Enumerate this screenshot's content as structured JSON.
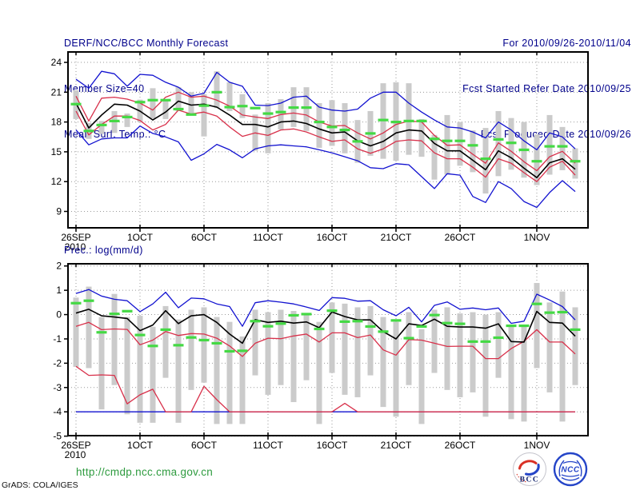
{
  "header": {
    "title": "DERF/NCC/BCC Monthly Forecast",
    "member_size": "Member Size=40",
    "for_range": "For 2010/09/26-2010/11/04",
    "refer_date": "Fcst Started Refer Date 2010/09/25",
    "produced_date": "Fcst Produced Date 2010/09/26"
  },
  "footer": {
    "url": "http://cmdp.ncc.cma.gov.cn",
    "grads_credit": "GrADS: COLA/IGES",
    "bcc_logo_text": "BCC",
    "ncc_logo_text": "NCC"
  },
  "colors": {
    "header_text": "#00008b",
    "axis_text": "#000000",
    "blue_line": "#1212d0",
    "red_line": "#d8304a",
    "green_dash": "#44d944",
    "gray_bar": "#cbcbcb",
    "grid": "#9a9a9a",
    "url_text": "#2e9b3f",
    "logo_red": "#d93025",
    "logo_blue": "#2545c8"
  },
  "chart_data": [
    {
      "type": "line",
      "panel": "mean-surface-temperature",
      "title": "Mean Surf. Temp.: °C",
      "ylabel": "°C",
      "xlabel": "",
      "grid": true,
      "legend": false,
      "n_days": 40,
      "x_tick_labels": [
        "26SEP",
        "1OCT",
        "6OCT",
        "11OCT",
        "16OCT",
        "21OCT",
        "26OCT",
        "1NOV"
      ],
      "x_tick_days": [
        1,
        6,
        11,
        16,
        21,
        26,
        31,
        37
      ],
      "x_year_label": "2010",
      "y_tick_labels": [
        "24",
        "21",
        "18",
        "15",
        "12",
        "9"
      ],
      "y_ticks": [
        24,
        21,
        18,
        15,
        12,
        9
      ],
      "ylim": [
        7.35,
        25.05
      ],
      "series": [
        {
          "name": "member-max",
          "color": "blue",
          "values": [
            22.3,
            21.4,
            23.1,
            22.85,
            21.6,
            22.8,
            22.7,
            22.0,
            21.5,
            20.6,
            20.9,
            23.0,
            22.0,
            21.6,
            19.7,
            19.65,
            19.9,
            20.5,
            20.6,
            19.5,
            19.2,
            19.1,
            19.3,
            20.4,
            21.0,
            21.0,
            19.9,
            19.0,
            18.2,
            17.5,
            17.4,
            17.0,
            16.4,
            18.0,
            17.2,
            16.1,
            15.2,
            16.9,
            16.5,
            15.3
          ]
        },
        {
          "name": "member-min",
          "color": "blue",
          "values": [
            17.2,
            15.7,
            16.3,
            16.4,
            16.4,
            17.6,
            16.85,
            16.5,
            16.0,
            14.15,
            14.8,
            15.75,
            15.2,
            14.4,
            15.3,
            15.6,
            15.7,
            15.6,
            15.5,
            15.2,
            14.9,
            14.5,
            14.1,
            13.4,
            13.3,
            13.8,
            13.7,
            12.5,
            11.3,
            12.8,
            12.65,
            10.5,
            9.9,
            12.0,
            11.3,
            10.0,
            9.4,
            10.9,
            12.1,
            11.0
          ]
        },
        {
          "name": "mean-plus-spread",
          "color": "red",
          "values": [
            20.6,
            18.1,
            20.4,
            20.5,
            20.3,
            19.9,
            19.2,
            20.5,
            21.0,
            20.5,
            20.6,
            20.2,
            19.6,
            18.7,
            18.5,
            18.35,
            18.75,
            18.9,
            18.7,
            18.0,
            17.6,
            17.65,
            16.9,
            16.3,
            16.9,
            17.75,
            18.1,
            18.0,
            16.65,
            15.65,
            15.7,
            14.75,
            13.85,
            15.9,
            15.05,
            14.0,
            13.1,
            14.5,
            15.05,
            13.85
          ]
        },
        {
          "name": "mean-minus-spread",
          "color": "red",
          "values": [
            19.1,
            16.7,
            17.75,
            18.6,
            18.6,
            18.15,
            17.2,
            17.75,
            19.2,
            18.8,
            19.0,
            18.6,
            17.5,
            16.55,
            16.9,
            16.65,
            17.2,
            17.3,
            17.0,
            16.5,
            16.05,
            16.2,
            15.3,
            14.85,
            15.3,
            16.05,
            16.2,
            16.1,
            14.9,
            14.3,
            14.3,
            13.45,
            12.45,
            14.3,
            13.85,
            12.9,
            12.0,
            13.45,
            14.05,
            12.65
          ]
        },
        {
          "name": "ensemble-mean",
          "color": "black",
          "values": [
            19.9,
            17.4,
            18.7,
            19.8,
            19.7,
            19.1,
            18.2,
            19.0,
            20.1,
            19.7,
            19.8,
            19.5,
            18.7,
            17.75,
            17.75,
            17.5,
            18.0,
            18.1,
            17.85,
            17.3,
            16.9,
            17.0,
            16.1,
            15.6,
            16.05,
            16.9,
            17.2,
            17.1,
            15.85,
            15.1,
            15.1,
            14.15,
            13.2,
            15.1,
            14.4,
            13.35,
            12.4,
            13.9,
            14.3,
            13.25
          ]
        }
      ],
      "obs": {
        "name": "daily-value-dash",
        "color": "green",
        "values": [
          19.8,
          17.1,
          17.7,
          18.1,
          18.5,
          20.0,
          20.2,
          20.2,
          19.3,
          18.75,
          19.65,
          21.0,
          19.5,
          19.6,
          19.4,
          18.85,
          19.0,
          19.45,
          19.45,
          18.0,
          17.5,
          17.2,
          16.05,
          16.85,
          18.2,
          18.0,
          18.1,
          18.1,
          16.3,
          16.1,
          16.1,
          15.65,
          14.3,
          16.25,
          15.9,
          15.2,
          14.05,
          15.55,
          15.55,
          14.05
        ]
      },
      "bars": {
        "name": "member-spread-bar",
        "color": "gray",
        "top": [
          21.2,
          17.9,
          18.1,
          19.1,
          18.85,
          20.25,
          21.4,
          20.25,
          21.5,
          21.0,
          20.8,
          23.1,
          22.0,
          20.8,
          18.75,
          19.9,
          20.3,
          21.5,
          21.5,
          19.9,
          20.2,
          19.9,
          18.2,
          19.1,
          21.9,
          22.0,
          21.9,
          18.3,
          16.7,
          18.7,
          18.0,
          17.15,
          17.4,
          19.1,
          18.4,
          18.0,
          16.75,
          18.7,
          17.5,
          15.35
        ],
        "bottom": [
          18.3,
          16.3,
          16.8,
          16.9,
          17.5,
          18.0,
          18.35,
          18.3,
          19.1,
          18.85,
          16.55,
          19.4,
          19.1,
          18.4,
          15.1,
          14.85,
          17.25,
          17.5,
          17.1,
          15.4,
          15.6,
          14.85,
          13.9,
          14.6,
          14.3,
          14.1,
          14.7,
          14.5,
          12.2,
          12.7,
          13.6,
          12.95,
          10.8,
          12.55,
          13.2,
          12.4,
          11.65,
          12.7,
          13.15,
          12.3
        ]
      }
    },
    {
      "type": "line",
      "panel": "precipitation",
      "title": "Prec.: log(mm/d)",
      "ylabel": "log(mm/d)",
      "xlabel": "",
      "grid": true,
      "legend": false,
      "n_days": 40,
      "x_tick_labels": [
        "26SEP",
        "1OCT",
        "6OCT",
        "11OCT",
        "16OCT",
        "21OCT",
        "26OCT",
        "1NOV"
      ],
      "x_tick_days": [
        1,
        6,
        11,
        16,
        21,
        26,
        31,
        37
      ],
      "x_year_label": "2010",
      "y_tick_labels": [
        "2",
        "1",
        "0",
        "-1",
        "-2",
        "-3",
        "-4",
        "-5"
      ],
      "y_ticks": [
        2,
        1,
        0,
        -1,
        -2,
        -3,
        -4,
        -5
      ],
      "ylim": [
        -4.98,
        2.09
      ],
      "series": [
        {
          "name": "member-max",
          "color": "blue",
          "values": [
            0.87,
            1.03,
            0.76,
            0.63,
            0.57,
            0.12,
            0.44,
            0.92,
            0.28,
            0.68,
            0.65,
            0.44,
            0.33,
            -0.48,
            0.49,
            0.57,
            0.51,
            0.44,
            0.31,
            0.17,
            0.7,
            0.67,
            0.55,
            0.57,
            0.2,
            -0.05,
            0.3,
            -0.3,
            0.38,
            0.52,
            0.22,
            0.27,
            0.2,
            0.27,
            -0.36,
            -0.27,
            0.84,
            0.6,
            0.33,
            -0.22
          ]
        },
        {
          "name": "member-min",
          "color": "blue",
          "values": [
            -4,
            -4,
            -4,
            -4,
            -4,
            -4,
            -4,
            -4,
            -4,
            -4,
            -4,
            -4,
            -4,
            -4,
            -4,
            -4,
            -4,
            -4,
            -4,
            -4,
            -4,
            -4,
            -4,
            -4,
            -4,
            -4,
            -4,
            -4,
            -4,
            -4,
            -4,
            -4,
            -4,
            -4,
            -4,
            -4,
            -4,
            -4,
            -4,
            -4
          ]
        },
        {
          "name": "upper-red",
          "color": "red",
          "values": [
            -0.48,
            -0.32,
            -0.62,
            -0.59,
            -0.61,
            -1.24,
            -1.05,
            -0.7,
            -0.86,
            -0.78,
            -0.8,
            -0.97,
            -1.29,
            -1.72,
            -1.18,
            -0.97,
            -0.99,
            -0.88,
            -0.8,
            -1.13,
            -0.75,
            -0.75,
            -0.95,
            -0.84,
            -1.45,
            -1.67,
            -1.03,
            -1.05,
            -1.18,
            -1.31,
            -1.3,
            -1.3,
            -1.81,
            -1.81,
            -1.4,
            -1.1,
            -0.62,
            -1.13,
            -1.13,
            -1.62
          ]
        },
        {
          "name": "lower-red",
          "color": "red",
          "values": [
            -2.13,
            -2.5,
            -2.48,
            -2.5,
            -3.67,
            -3.3,
            -3.07,
            -4.0,
            -4.0,
            -4.0,
            -2.95,
            -3.5,
            -4.0,
            -4.0,
            -4.0,
            -4.0,
            -4.0,
            -4.0,
            -4.0,
            -4.0,
            -4.0,
            -3.65,
            -4.0,
            -4.0,
            -4.0,
            -4.0,
            -4.0,
            -4.0,
            -4.0,
            -4.0,
            -4.0,
            -4.0,
            -4.0,
            -4.0,
            -4.0,
            -4.0,
            -4.0,
            -4.0,
            -4.0,
            -4.0
          ]
        },
        {
          "name": "ensemble-mean",
          "color": "black",
          "values": [
            0.06,
            0.22,
            -0.05,
            -0.1,
            -0.16,
            -0.66,
            -0.43,
            0.16,
            -0.37,
            -0.05,
            0.0,
            -0.32,
            -0.8,
            -1.18,
            -0.21,
            -0.32,
            -0.27,
            -0.35,
            -0.3,
            -0.54,
            0.11,
            -0.08,
            -0.22,
            -0.22,
            -0.7,
            -1.0,
            -0.38,
            -0.45,
            -0.19,
            -0.48,
            -0.51,
            -0.51,
            -0.56,
            -0.38,
            -1.11,
            -1.13,
            0.13,
            -0.32,
            -0.35,
            -0.89
          ]
        }
      ],
      "obs": {
        "name": "daily-value-dash",
        "color": "green",
        "values": [
          0.47,
          0.57,
          -0.73,
          0.03,
          0.14,
          -0.84,
          -1.29,
          -0.62,
          -1.26,
          -0.94,
          -1.05,
          -1.18,
          -1.51,
          -1.49,
          -0.27,
          -0.48,
          -0.37,
          -0.03,
          0.02,
          -0.59,
          0.16,
          -0.29,
          -0.27,
          -0.49,
          -0.7,
          -0.24,
          -0.97,
          -0.49,
          -0.02,
          -0.35,
          -0.38,
          -1.11,
          -1.11,
          -0.95,
          -0.46,
          -0.46,
          0.44,
          0.08,
          0.1,
          -0.62
        ]
      },
      "bars": {
        "name": "member-spread-bar",
        "color": "gray",
        "top": [
          0.7,
          1.15,
          -0.1,
          0.85,
          -0.1,
          -0.05,
          -0.5,
          0.35,
          -0.2,
          0.2,
          0.3,
          -0.1,
          -0.3,
          -0.9,
          0.2,
          0.1,
          0.2,
          0.15,
          0.05,
          -0.3,
          0.5,
          0.45,
          0.3,
          0.35,
          -0.1,
          -0.3,
          0.1,
          -0.6,
          0.2,
          0.3,
          0.05,
          0.1,
          0.0,
          0.1,
          -0.5,
          -0.5,
          1.3,
          0.5,
          0.95,
          0.3
        ],
        "bottom": [
          -2.15,
          -2.2,
          -3.9,
          -2.9,
          -4.1,
          -4.45,
          -4.45,
          -2.6,
          -4.45,
          -3.1,
          -2.8,
          -4.5,
          -4.5,
          -4.5,
          -2.5,
          -3.3,
          -2.9,
          -3.6,
          -2.7,
          -4.5,
          -2.4,
          -3.3,
          -3.4,
          -2.5,
          -3.8,
          -4.2,
          -2.9,
          -4.5,
          -2.4,
          -3.1,
          -3.4,
          -3.2,
          -4.2,
          -2.6,
          -4.3,
          -4.4,
          -2.2,
          -3.2,
          -4.4,
          -2.9
        ]
      }
    }
  ]
}
